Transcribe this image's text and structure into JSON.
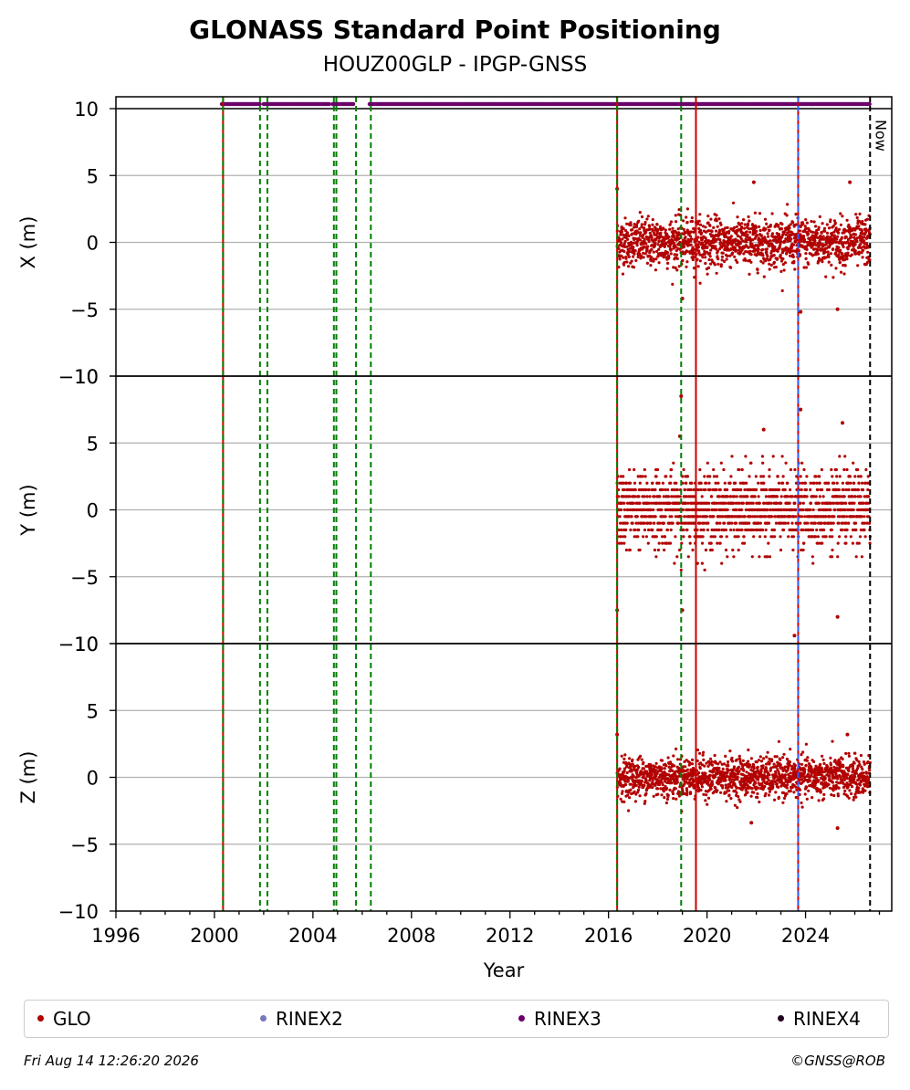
{
  "chart_data": {
    "type": "scatter",
    "title": "GLONASS Standard Point Positioning",
    "subtitle": "HOUZ00GLP - IPGP-GNSS",
    "xlabel": "Year",
    "xlim": [
      1996,
      2027.5
    ],
    "x_ticks": [
      "1996",
      "2000",
      "2004",
      "2008",
      "2012",
      "2016",
      "2020",
      "2024"
    ],
    "now_label": "Now",
    "now_year": 2026.62,
    "panels": [
      {
        "ylabel": "X (m)",
        "ylim": [
          -10,
          10
        ],
        "y_ticks": [
          "10",
          "5",
          "0",
          "−5",
          "−10"
        ],
        "grid": true,
        "noise_sd": 0.9,
        "outliers": [
          {
            "x": 2016.35,
            "y": 4.0
          },
          {
            "x": 2019.0,
            "y": -4.2
          },
          {
            "x": 2023.8,
            "y": -5.2
          },
          {
            "x": 2025.3,
            "y": -5.0
          },
          {
            "x": 2025.8,
            "y": 4.5
          },
          {
            "x": 2021.9,
            "y": 4.5
          }
        ]
      },
      {
        "ylabel": "Y (m)",
        "ylim": [
          -10,
          10
        ],
        "y_ticks": [
          "10",
          "5",
          "0",
          "−5",
          "−10"
        ],
        "grid": true,
        "noise_sd": 1.4,
        "outliers": [
          {
            "x": 2018.95,
            "y": 8.5
          },
          {
            "x": 2023.8,
            "y": 7.5
          },
          {
            "x": 2018.9,
            "y": 5.5
          },
          {
            "x": 2022.3,
            "y": 6.0
          },
          {
            "x": 2025.5,
            "y": 6.5
          },
          {
            "x": 2016.35,
            "y": -7.5
          },
          {
            "x": 2023.55,
            "y": -9.4
          },
          {
            "x": 2025.3,
            "y": -8.0
          },
          {
            "x": 2019.0,
            "y": -7.5
          }
        ]
      },
      {
        "ylabel": "Z (m)",
        "ylim": [
          -10,
          10
        ],
        "y_ticks": [
          "10",
          "5",
          "0",
          "−5",
          "−10"
        ],
        "grid": true,
        "noise_sd": 0.75,
        "outliers": [
          {
            "x": 2016.35,
            "y": 3.2
          },
          {
            "x": 2025.7,
            "y": 3.2
          },
          {
            "x": 2025.3,
            "y": -3.8
          },
          {
            "x": 2021.8,
            "y": -3.4
          }
        ]
      }
    ],
    "series": [
      {
        "name": "GLO",
        "color": "#b30000",
        "x_start": 2016.35,
        "x_end": 2026.62
      }
    ],
    "rinex_availability": {
      "color": "#6a006a",
      "y": 10.4,
      "segments": [
        [
          2000.3,
          2001.9
        ],
        [
          2002.0,
          2004.7
        ],
        [
          2004.8,
          2005.7
        ],
        [
          2006.3,
          2026.6
        ]
      ]
    },
    "vlines": [
      {
        "x": 2000.35,
        "color": "#cc0000",
        "style": "solid"
      },
      {
        "x": 2000.35,
        "color": "#008000",
        "style": "dashed"
      },
      {
        "x": 2001.85,
        "color": "#008000",
        "style": "dashed"
      },
      {
        "x": 2002.15,
        "color": "#008000",
        "style": "dashed"
      },
      {
        "x": 2004.85,
        "color": "#008000",
        "style": "dashed"
      },
      {
        "x": 2004.95,
        "color": "#008000",
        "style": "dashed"
      },
      {
        "x": 2005.75,
        "color": "#008000",
        "style": "dashed"
      },
      {
        "x": 2006.35,
        "color": "#008000",
        "style": "dashed"
      },
      {
        "x": 2016.35,
        "color": "#cc0000",
        "style": "solid"
      },
      {
        "x": 2016.35,
        "color": "#008000",
        "style": "dashed"
      },
      {
        "x": 2018.95,
        "color": "#008000",
        "style": "dashed"
      },
      {
        "x": 2019.55,
        "color": "#cc0000",
        "style": "solid"
      },
      {
        "x": 2023.7,
        "color": "#cc0000",
        "style": "solid"
      },
      {
        "x": 2023.7,
        "color": "#3060ff",
        "style": "dashed"
      }
    ],
    "legend": [
      {
        "label": "GLO",
        "color": "#b30000"
      },
      {
        "label": "RINEX2",
        "color": "#7777bb"
      },
      {
        "label": "RINEX3",
        "color": "#6a006a"
      },
      {
        "label": "RINEX4",
        "color": "#220022"
      }
    ],
    "legend_position": "bottom",
    "footer_left": "Fri Aug 14 12:26:20 2026",
    "footer_right": "©GNSS@ROB"
  }
}
